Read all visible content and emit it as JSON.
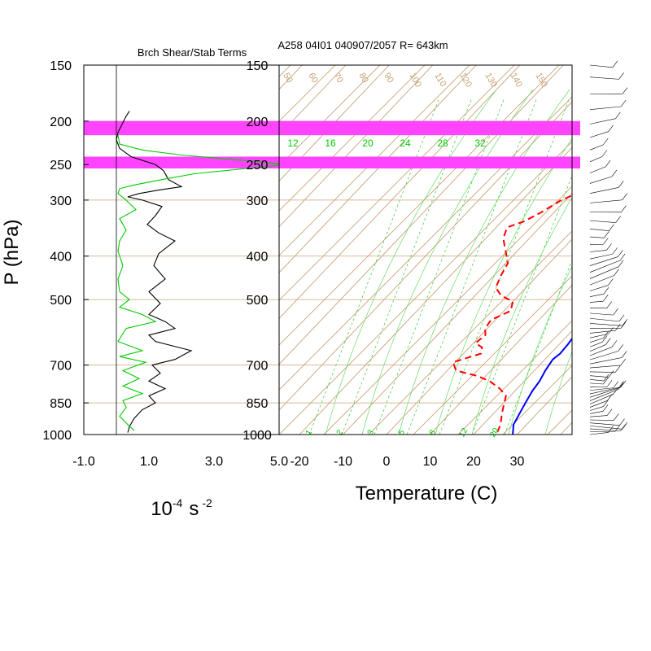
{
  "titles": {
    "left": "Brch Shear/Stab Terms",
    "right": "A258 04I01 040907/2057 R= 643km"
  },
  "axes": {
    "pressure_label": "P (hPa)",
    "left_x_units_base": "10",
    "left_x_units_exp": "-4",
    "left_x_units_unit": "s",
    "left_x_units_exp2": "-2",
    "right_x_label": "Temperature (C)"
  },
  "colors": {
    "brch_black": "#000000",
    "stab_green": "#00cc00",
    "band_magenta": "#ff44ff",
    "skewt_grid": "#c8a278",
    "temperature": "#ff0000",
    "dewpoint_blue": "#0000ff",
    "mixing_ratio": "#33cc33",
    "moist_adiabat": "#66dd66"
  },
  "chart_data": [
    {
      "type": "line",
      "name": "brch-shear-stab",
      "title": "Brch Shear/Stab Terms",
      "y_axis": "pressure (log)",
      "ylim": [
        1000,
        150
      ],
      "y_ticks": [
        150,
        200,
        250,
        300,
        400,
        500,
        700,
        850,
        1000
      ],
      "y_tick_labels": [
        "150",
        "200",
        "250",
        "300",
        "400",
        "500",
        "700",
        "850",
        "1000"
      ],
      "xlim": [
        -1.0,
        5.0
      ],
      "x_ticks": [
        -1.0,
        1.0,
        3.0,
        5.0
      ],
      "x_tick_labels": [
        "-1.0",
        "1.0",
        "3.0",
        "5.0"
      ],
      "zero_line": 0,
      "highlight_bands_hpa": [
        [
          200,
          215
        ],
        [
          240,
          255
        ]
      ],
      "series": [
        {
          "color": "black",
          "points": [
            [
              0.4,
              190
            ],
            [
              0.3,
              195
            ],
            [
              0.15,
              205
            ],
            [
              0.05,
              212
            ],
            [
              0.0,
              220
            ],
            [
              0.1,
              230
            ],
            [
              0.45,
              240
            ],
            [
              1.2,
              250
            ],
            [
              1.45,
              258
            ],
            [
              1.6,
              270
            ],
            [
              2.0,
              280
            ],
            [
              1.3,
              285
            ],
            [
              0.7,
              290
            ],
            [
              0.35,
              295
            ],
            [
              0.8,
              300
            ],
            [
              1.4,
              310
            ],
            [
              1.2,
              325
            ],
            [
              0.95,
              340
            ],
            [
              1.3,
              355
            ],
            [
              1.8,
              370
            ],
            [
              1.3,
              395
            ],
            [
              1.15,
              420
            ],
            [
              1.5,
              450
            ],
            [
              1.0,
              480
            ],
            [
              1.35,
              510
            ],
            [
              1.0,
              540
            ],
            [
              1.5,
              560
            ],
            [
              1.8,
              580
            ],
            [
              1.0,
              600
            ],
            [
              1.2,
              620
            ],
            [
              2.3,
              650
            ],
            [
              1.8,
              680
            ],
            [
              1.1,
              700
            ],
            [
              1.35,
              730
            ],
            [
              1.0,
              760
            ],
            [
              1.5,
              790
            ],
            [
              1.0,
              820
            ],
            [
              1.2,
              850
            ],
            [
              0.8,
              880
            ],
            [
              0.55,
              920
            ],
            [
              0.4,
              960
            ],
            [
              0.35,
              990
            ]
          ]
        },
        {
          "color": "green",
          "points": [
            [
              0.05,
              215
            ],
            [
              0.1,
              225
            ],
            [
              0.8,
              232
            ],
            [
              2.0,
              238
            ],
            [
              4.0,
              245
            ],
            [
              5.2,
              250
            ],
            [
              4.0,
              255
            ],
            [
              2.4,
              262
            ],
            [
              1.4,
              270
            ],
            [
              0.5,
              278
            ],
            [
              0.1,
              283
            ],
            [
              0.05,
              290
            ],
            [
              0.3,
              300
            ],
            [
              0.6,
              315
            ],
            [
              0.1,
              330
            ],
            [
              0.3,
              350
            ],
            [
              0.1,
              370
            ],
            [
              0.05,
              390
            ],
            [
              0.2,
              420
            ],
            [
              0.05,
              450
            ],
            [
              0.1,
              480
            ],
            [
              0.4,
              500
            ],
            [
              0.1,
              520
            ],
            [
              0.8,
              540
            ],
            [
              1.2,
              560
            ],
            [
              0.3,
              580
            ],
            [
              0.05,
              620
            ],
            [
              0.8,
              650
            ],
            [
              0.1,
              670
            ],
            [
              0.9,
              690
            ],
            [
              0.2,
              720
            ],
            [
              0.7,
              750
            ],
            [
              0.2,
              780
            ],
            [
              0.8,
              810
            ],
            [
              0.2,
              840
            ],
            [
              0.3,
              870
            ],
            [
              0.1,
              910
            ],
            [
              0.35,
              950
            ],
            [
              0.55,
              980
            ]
          ]
        }
      ]
    },
    {
      "type": "line",
      "name": "skew-t",
      "title": "A258 04I01 040907/2057 R= 643km",
      "xlabel": "Temperature (C)",
      "y_axis": "pressure (log)",
      "ylim": [
        1000,
        150
      ],
      "y_ticks": [
        150,
        200,
        250,
        300,
        400,
        500,
        700,
        850,
        1000
      ],
      "y_tick_labels": [
        "150",
        "200",
        "250",
        "300",
        "400",
        "500",
        "700",
        "850",
        "1000"
      ],
      "x_ticks": [
        -20,
        -10,
        0,
        10,
        20,
        30
      ],
      "x_tick_labels": [
        "-20",
        "-10",
        "0",
        "10",
        "20",
        "30"
      ],
      "skewed_isotherm_labels_top": [
        "50",
        "60",
        "70",
        "80",
        "90",
        "100",
        "110",
        "120",
        "130",
        "140",
        "150"
      ],
      "mixing_ratio_labels_upper": [
        "12",
        "16",
        "20",
        "24",
        "28",
        "32"
      ],
      "mixing_ratio_labels_lower": [
        "1",
        "2",
        "3",
        "5",
        "8",
        "12",
        "20"
      ],
      "series": [
        {
          "name": "temperature-profile",
          "style": "solid",
          "color": "blue",
          "points": [
            [
              -2.5,
              185
            ],
            [
              0.5,
              200
            ],
            [
              3.5,
              220
            ],
            [
              5.5,
              245
            ],
            [
              6.5,
              270
            ],
            [
              8.5,
              290
            ],
            [
              9.5,
              320
            ],
            [
              11.5,
              360
            ],
            [
              13.5,
              410
            ],
            [
              15,
              450
            ],
            [
              16.5,
              480
            ],
            [
              18,
              510
            ],
            [
              19,
              540
            ],
            [
              20,
              570
            ],
            [
              20.5,
              590
            ],
            [
              21.5,
              600
            ],
            [
              22,
              630
            ],
            [
              22.2,
              660
            ],
            [
              21.8,
              680
            ],
            [
              22.5,
              720
            ],
            [
              23.5,
              760
            ],
            [
              24,
              800
            ],
            [
              25,
              850
            ],
            [
              26,
              900
            ],
            [
              27,
              950
            ],
            [
              29,
              1000
            ]
          ]
        },
        {
          "name": "dewpoint-profile",
          "style": "dashed",
          "color": "red",
          "points": [
            [
              -6.5,
              210
            ],
            [
              -3,
              225
            ],
            [
              1.5,
              240
            ],
            [
              2.5,
              255
            ],
            [
              1.0,
              270
            ],
            [
              -3,
              280
            ],
            [
              -8.5,
              288
            ],
            [
              -11,
              300
            ],
            [
              -13,
              320
            ],
            [
              -15,
              335
            ],
            [
              -17.5,
              345
            ],
            [
              -16,
              365
            ],
            [
              -14,
              380
            ],
            [
              -12,
              395
            ],
            [
              -9.5,
              415
            ],
            [
              -8.5,
              440
            ],
            [
              -7,
              470
            ],
            [
              -4,
              490
            ],
            [
              0,
              505
            ],
            [
              1.5,
              530
            ],
            [
              -1,
              555
            ],
            [
              -0.5,
              580
            ],
            [
              1,
              600
            ],
            [
              0.5,
              625
            ],
            [
              3,
              640
            ],
            [
              4,
              660
            ],
            [
              -0.5,
              690
            ],
            [
              2,
              720
            ],
            [
              8,
              740
            ],
            [
              12,
              760
            ],
            [
              16,
              790
            ],
            [
              19,
              820
            ],
            [
              20.5,
              860
            ],
            [
              22,
              900
            ],
            [
              24,
              950
            ],
            [
              25,
              990
            ]
          ]
        }
      ]
    }
  ],
  "wind_barbs": {
    "label": "wind barbs profile",
    "count": 60
  }
}
